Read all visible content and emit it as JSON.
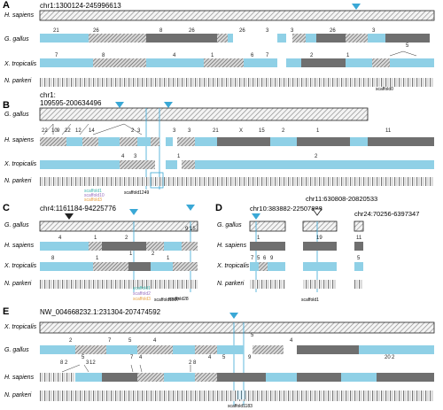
{
  "colors": {
    "cyan": "#8fd0e6",
    "dark": "#6f6f6f",
    "hatch": "#9a9a9a",
    "marker": "#3aa8d6",
    "orange": "#e8a040",
    "purple": "#9a70c0",
    "teal": "#40b8b0"
  },
  "panels": [
    {
      "letter": "A",
      "header": "chr1:1300124-245996613",
      "species": [
        "H. sapiens",
        "G. gallus",
        "X. tropicalis",
        "N. parkeri"
      ],
      "numbers": {
        "gallus": [
          "21",
          "26",
          "8",
          "26",
          "26",
          "3",
          "3",
          "26",
          "3"
        ],
        "tropicalis": [
          "7",
          "8",
          "4",
          "1",
          "6",
          "7",
          "2",
          "1",
          "5"
        ]
      },
      "scaffold": "scaffold0"
    },
    {
      "letter": "B",
      "header": "chr1:",
      "header2": "109595-200634496",
      "species": [
        "G. gallus",
        "H. sapiens",
        "X. tropicalis",
        "N. parkeri"
      ],
      "numbers": {
        "sapiens": [
          "22",
          "10",
          "9",
          "22",
          "12",
          "14",
          "2",
          "3",
          "3",
          "3",
          "21",
          "X",
          "15",
          "2",
          "1",
          "11"
        ],
        "tropicalis": [
          "4",
          "3",
          "1",
          "2"
        ]
      },
      "scaffolds": [
        "scaffold1",
        "scaffold10",
        "scaffold3",
        "scaffold1249"
      ]
    },
    {
      "letter": "C",
      "header": "chr4:1161184-94225776",
      "species": [
        "G. gallus",
        "H. sapiens",
        "X. tropicalis",
        "N. parkeri"
      ],
      "numbers": {
        "sapiens": [
          "4",
          "1",
          "2",
          "9",
          "15"
        ],
        "tropicalis": [
          "8",
          "1",
          "1",
          "2",
          "1"
        ]
      },
      "scaffolds": [
        "scaffold1",
        "scaffold2",
        "scaffold3",
        "scaffold28",
        "scaffold1507"
      ]
    },
    {
      "letter": "D",
      "headers": [
        "chr10:383882-22507888",
        "chr11:630808-20820533",
        "chr24:70256-6397347"
      ],
      "species": [
        "G. gallus",
        "H. sapiens",
        "X. tropicalis",
        "N. parkeri"
      ],
      "numbers": {
        "sapiens": [
          "1",
          "19",
          "11"
        ],
        "tropicalis": [
          "7",
          "5",
          "6",
          "9",
          "5"
        ]
      },
      "scaffold": "scaffold1"
    },
    {
      "letter": "E",
      "header": "NW_004668232.1:231304-207474592",
      "species": [
        "X. tropicalis",
        "G. gallus",
        "H. sapiens",
        "N. parkeri"
      ],
      "numbers": {
        "gallus": [
          "2",
          "7",
          "5",
          "4",
          "5",
          "4"
        ],
        "sapiens": [
          "8",
          "2",
          "5",
          "3",
          "12",
          "7",
          "4",
          "2",
          "8",
          "4",
          "5",
          "9",
          "20",
          "2"
        ]
      },
      "scaffold": "scaffold1183"
    }
  ]
}
